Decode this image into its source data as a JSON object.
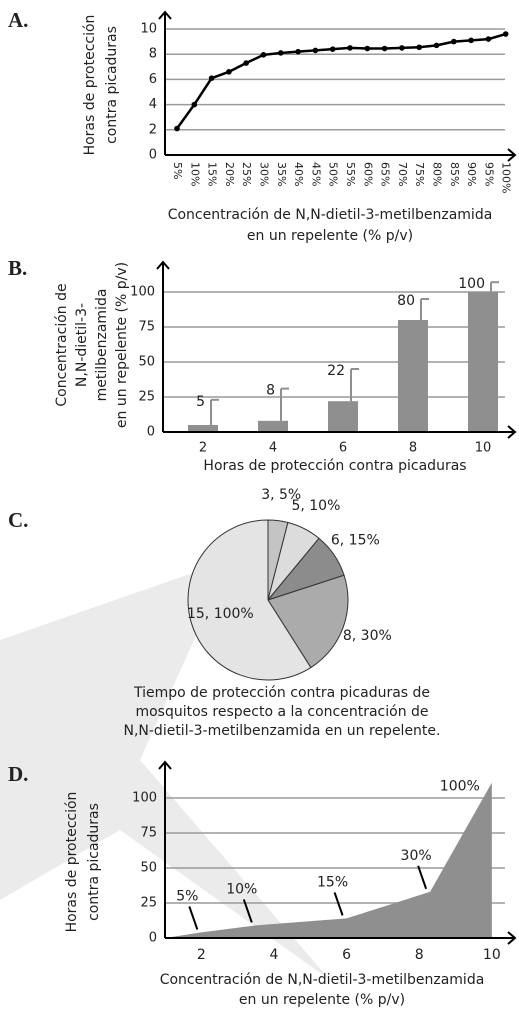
{
  "chart_data": [
    {
      "panel": "A.",
      "type": "line",
      "y_label": [
        "Horas de protección",
        "contra picaduras"
      ],
      "x_label": [
        "Concentración de N,N-dietil-3-metilbenzamida",
        "en un repelente (% p/v)"
      ],
      "categories": [
        "5%",
        "10%",
        "15%",
        "20%",
        "25%",
        "30%",
        "35%",
        "40%",
        "45%",
        "50%",
        "55%",
        "60%",
        "65%",
        "70%",
        "75%",
        "80%",
        "85%",
        "90%",
        "95%",
        "100%"
      ],
      "values": [
        2.1,
        4,
        6.1,
        6.6,
        7.3,
        7.95,
        8.1,
        8.2,
        8.3,
        8.4,
        8.5,
        8.45,
        8.45,
        8.5,
        8.55,
        8.7,
        9.0,
        9.1,
        9.2,
        9.6
      ],
      "color": "#000000",
      "ylim": [
        0,
        10
      ],
      "yticks": [
        0,
        2,
        4,
        6,
        8,
        10
      ],
      "grid": true
    },
    {
      "panel": "B.",
      "type": "bar",
      "y_label": [
        "Concentración de",
        "N,N-dietil-3-",
        "metilbenzamida",
        "en un repelente (% p/v)"
      ],
      "x_label": [
        "Horas de protección contra picaduras"
      ],
      "categories": [
        "2",
        "4",
        "6",
        "8",
        "10"
      ],
      "values": [
        5,
        8,
        22,
        80,
        100
      ],
      "errors": [
        18,
        23,
        23,
        15,
        7
      ],
      "color": "#8f8f8f",
      "ylim": [
        0,
        110
      ],
      "yticks": [
        0,
        25,
        50,
        75,
        100
      ],
      "grid": true
    },
    {
      "panel": "C.",
      "type": "pie",
      "categories": [
        "3, 5%",
        "5, 10%",
        "6, 15%",
        "8, 30%",
        "15, 100%"
      ],
      "values": [
        4,
        7,
        9,
        21,
        59
      ],
      "colors": [
        "#c4c4c4",
        "#dcdcdc",
        "#8c8c8c",
        "#ababab",
        "#e4e4e4"
      ],
      "caption": [
        "Tiempo de protección contra picaduras de",
        "mosquitos respecto a la concentración de",
        "N,N-dietil-3-metilbenzamida en un repelente."
      ]
    },
    {
      "panel": "D.",
      "type": "area",
      "y_label": [
        "Horas de protección",
        "contra picaduras"
      ],
      "x_label": [
        "Concentración de N,N-dietil-3-metilbenzamida",
        "en un repelente (% p/v)"
      ],
      "x": [
        1,
        2,
        3.5,
        6,
        8.3,
        10
      ],
      "values": [
        0,
        4,
        9,
        14,
        33,
        111
      ],
      "color": "#8f8f8f",
      "xlim": [
        1,
        10.5
      ],
      "xticks": [
        2,
        4,
        6,
        8,
        10
      ],
      "ylim": [
        0,
        115
      ],
      "yticks": [
        0,
        25,
        50,
        75,
        100
      ],
      "grid": true,
      "annotations": [
        {
          "text": "5%",
          "x": 2,
          "y": 4
        },
        {
          "text": "10%",
          "x": 3.5,
          "y": 9
        },
        {
          "text": "15%",
          "x": 6,
          "y": 14
        },
        {
          "text": "30%",
          "x": 8.3,
          "y": 33
        },
        {
          "text": "100%",
          "x": 10,
          "y": 111
        }
      ]
    }
  ]
}
